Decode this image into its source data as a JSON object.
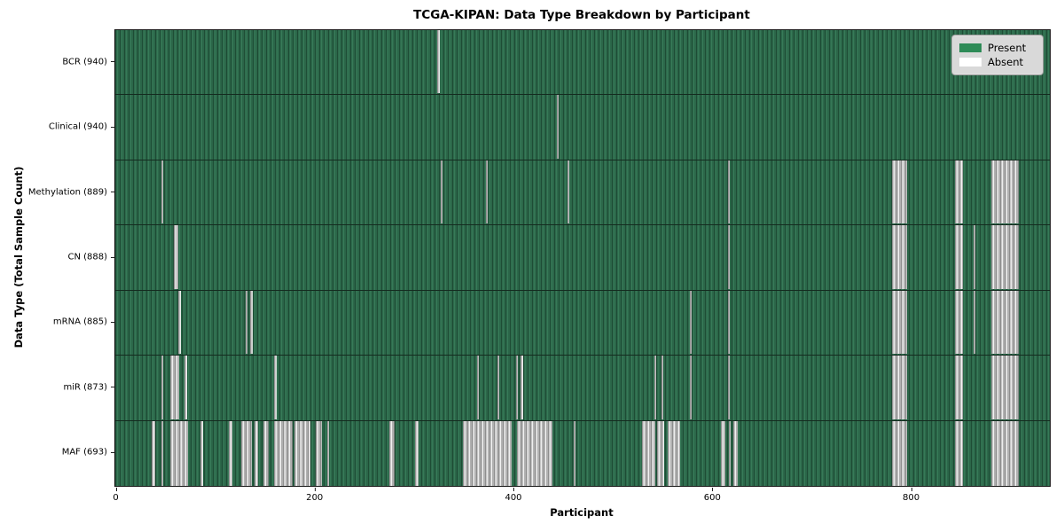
{
  "title": "TCGA-KIPAN: Data Type Breakdown by Participant",
  "xlabel": "Participant",
  "ylabel": "Data Type (Total Sample Count)",
  "legend": {
    "items": [
      {
        "label": "Present",
        "color": "#2e8b57"
      },
      {
        "label": "Absent",
        "color": "#ffffff"
      }
    ]
  },
  "colors": {
    "present_green": "#2e8b57",
    "absent_white": "#ffffff",
    "row_separator": "#142b1f",
    "plot_border": "#1a1a1a",
    "legend_bg": "#d9d9d9"
  },
  "chart_data": {
    "type": "heatmap",
    "title": "TCGA-KIPAN: Data Type Breakdown by Participant",
    "xlabel": "Participant",
    "ylabel": "Data Type (Total Sample Count)",
    "x_ticks": [
      0,
      200,
      400,
      600,
      800
    ],
    "x_max": 940,
    "legend_position": "upper right",
    "value_encoding": {
      "present": "green cell",
      "absent": "white/gray cell"
    },
    "rows": [
      {
        "label": "BCR (940)",
        "data_type": "BCR",
        "total_samples": 940,
        "absent_ranges": [
          [
            324,
            326
          ]
        ]
      },
      {
        "label": "Clinical (940)",
        "data_type": "Clinical",
        "total_samples": 940,
        "absent_ranges": [
          [
            444,
            446
          ]
        ]
      },
      {
        "label": "Methylation (889)",
        "data_type": "Methylation",
        "total_samples": 889,
        "absent_ranges": [
          [
            46,
            48
          ],
          [
            327,
            329
          ],
          [
            373,
            375
          ],
          [
            455,
            457
          ],
          [
            616,
            618
          ],
          [
            781,
            796
          ],
          [
            845,
            853
          ],
          [
            881,
            909
          ]
        ]
      },
      {
        "label": "CN (888)",
        "data_type": "CN",
        "total_samples": 888,
        "absent_ranges": [
          [
            59,
            63
          ],
          [
            616,
            618
          ],
          [
            781,
            796
          ],
          [
            845,
            853
          ],
          [
            863,
            865
          ],
          [
            881,
            909
          ]
        ]
      },
      {
        "label": "mRNA (885)",
        "data_type": "mRNA",
        "total_samples": 885,
        "absent_ranges": [
          [
            63,
            66
          ],
          [
            131,
            133
          ],
          [
            136,
            138
          ],
          [
            578,
            580
          ],
          [
            616,
            618
          ],
          [
            781,
            796
          ],
          [
            845,
            853
          ],
          [
            863,
            865
          ],
          [
            881,
            909
          ]
        ]
      },
      {
        "label": "miR (873)",
        "data_type": "miR",
        "total_samples": 873,
        "absent_ranges": [
          [
            46,
            48
          ],
          [
            55,
            64
          ],
          [
            70,
            72
          ],
          [
            160,
            162
          ],
          [
            364,
            366
          ],
          [
            384,
            386
          ],
          [
            403,
            405
          ],
          [
            408,
            410
          ],
          [
            542,
            544
          ],
          [
            549,
            551
          ],
          [
            578,
            580
          ],
          [
            616,
            618
          ],
          [
            781,
            796
          ],
          [
            845,
            853
          ],
          [
            881,
            909
          ]
        ]
      },
      {
        "label": "MAF (693)",
        "data_type": "MAF",
        "total_samples": 693,
        "absent_ranges": [
          [
            37,
            40
          ],
          [
            46,
            48
          ],
          [
            55,
            73
          ],
          [
            86,
            88
          ],
          [
            114,
            118
          ],
          [
            127,
            137
          ],
          [
            140,
            144
          ],
          [
            149,
            154
          ],
          [
            160,
            178
          ],
          [
            180,
            196
          ],
          [
            202,
            208
          ],
          [
            213,
            215
          ],
          [
            276,
            281
          ],
          [
            301,
            305
          ],
          [
            350,
            399
          ],
          [
            404,
            440
          ],
          [
            461,
            463
          ],
          [
            530,
            543
          ],
          [
            545,
            552
          ],
          [
            556,
            568
          ],
          [
            609,
            614
          ],
          [
            617,
            619
          ],
          [
            622,
            626
          ],
          [
            781,
            796
          ],
          [
            845,
            853
          ],
          [
            881,
            909
          ]
        ]
      }
    ]
  }
}
